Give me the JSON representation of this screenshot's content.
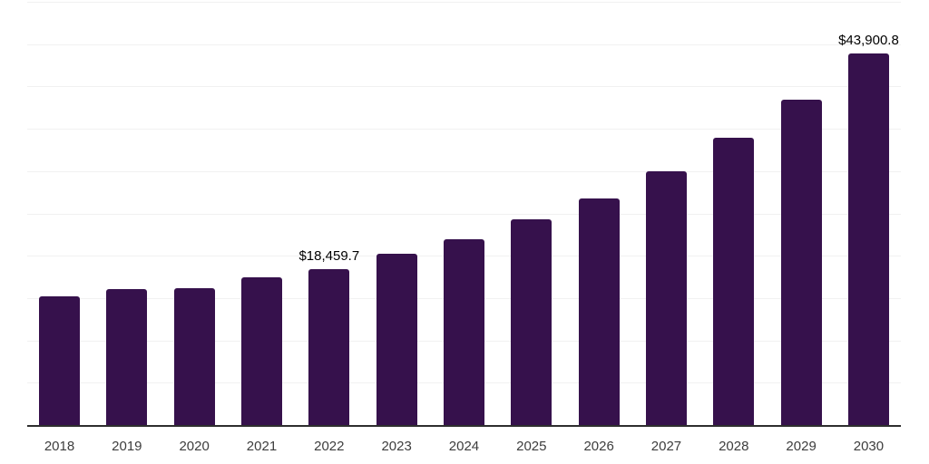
{
  "chart_data": {
    "type": "bar",
    "title": "",
    "xlabel": "",
    "ylabel": "",
    "categories": [
      "2018",
      "2019",
      "2020",
      "2021",
      "2022",
      "2023",
      "2024",
      "2025",
      "2026",
      "2027",
      "2028",
      "2029",
      "2030"
    ],
    "values": [
      15200,
      16050,
      16160,
      17430,
      18459.7,
      20200,
      21900,
      24350,
      26800,
      30000,
      33900,
      38400,
      43900.8
    ],
    "data_labels": [
      "",
      "",
      "",
      "",
      "$18,459.7",
      "",
      "",
      "",
      "",
      "",
      "",
      "",
      "$43,900.8"
    ],
    "labeled_points": [
      {
        "category": "2022",
        "label": "$18,459.7",
        "value": 18459.7
      },
      {
        "category": "2030",
        "label": "$43,900.8",
        "value": 43900.8
      }
    ],
    "ylim": [
      0,
      50000
    ],
    "gridline_step": 5000,
    "grid": true,
    "legend_position": "none",
    "y_tick_labels_visible": false,
    "colors": {
      "bar": "#36114c",
      "grid": "#f1f1f1",
      "axis": "#2e2e2e",
      "tick_label": "#3d3d3d",
      "data_label": "#000000",
      "background": "#ffffff"
    }
  }
}
